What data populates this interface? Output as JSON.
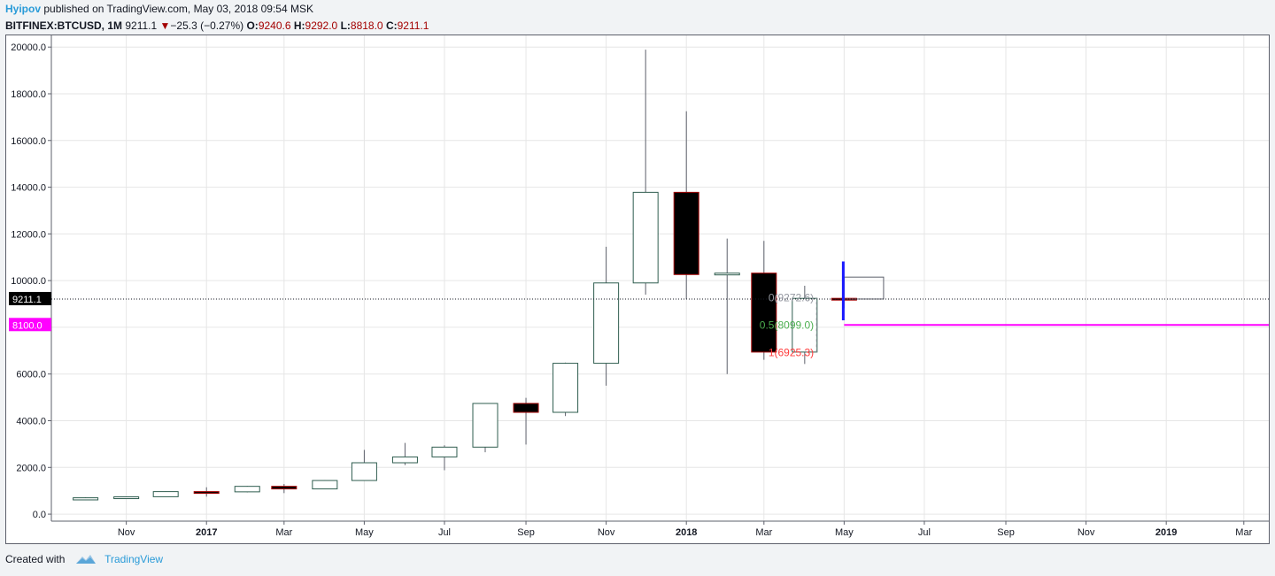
{
  "header": {
    "author": "Hyipov",
    "published_text": "published on TradingView.com, May 03, 2018 09:54 MSK",
    "symbol": "BITFINEX:BTCUSD, 1M",
    "last_price": "9211.1",
    "change": "−25.3 (−0.27%)",
    "open_label": "O:",
    "open": "9240.6",
    "high_label": "H:",
    "high": "9292.0",
    "low_label": "L:",
    "low": "8818.0",
    "close_label": "C:",
    "close": "9211.1"
  },
  "footer": {
    "created_with": "Created with",
    "brand": "TradingView"
  },
  "colors": {
    "up_border": "#2f5d4f",
    "down_body": "#000000",
    "down_border": "#a30000",
    "wick": "#5d606b",
    "grid": "#e6e6e6",
    "magenta": "#ff00ff",
    "fib0": "#9598a1",
    "fib05": "#4caf50",
    "fib1": "#ff3b3b",
    "marker": "#1a1aff"
  },
  "chart_data": {
    "type": "candlestick",
    "timeframe": "1M",
    "y_ticks": [
      "0.0",
      "2000.0",
      "4000.0",
      "6000.0",
      "8000.0",
      "10000.0",
      "12000.0",
      "14000.0",
      "16000.0",
      "18000.0",
      "20000.0"
    ],
    "y_tick_values": [
      0,
      2000,
      4000,
      6000,
      8000,
      10000,
      12000,
      14000,
      16000,
      18000,
      20000
    ],
    "ylim": [
      -300,
      20500
    ],
    "x_range": [
      "2016-09-05",
      "2019-03-20"
    ],
    "x_ticks": [
      {
        "label": "Nov",
        "date": "2016-11-01",
        "bold": false
      },
      {
        "label": "2017",
        "date": "2017-01-01",
        "bold": true
      },
      {
        "label": "Mar",
        "date": "2017-03-01",
        "bold": false
      },
      {
        "label": "May",
        "date": "2017-05-01",
        "bold": false
      },
      {
        "label": "Jul",
        "date": "2017-07-01",
        "bold": false
      },
      {
        "label": "Sep",
        "date": "2017-09-01",
        "bold": false
      },
      {
        "label": "Nov",
        "date": "2017-11-01",
        "bold": false
      },
      {
        "label": "2018",
        "date": "2018-01-01",
        "bold": true
      },
      {
        "label": "Mar",
        "date": "2018-03-01",
        "bold": false
      },
      {
        "label": "May",
        "date": "2018-05-01",
        "bold": false
      },
      {
        "label": "Jul",
        "date": "2018-07-01",
        "bold": false
      },
      {
        "label": "Sep",
        "date": "2018-09-01",
        "bold": false
      },
      {
        "label": "Nov",
        "date": "2018-11-01",
        "bold": false
      },
      {
        "label": "2019",
        "date": "2019-01-01",
        "bold": true
      },
      {
        "label": "Mar",
        "date": "2019-03-01",
        "bold": false
      }
    ],
    "candles": [
      {
        "date": "2016-10-01",
        "open": 610,
        "high": 720,
        "low": 600,
        "close": 700
      },
      {
        "date": "2016-11-01",
        "open": 700,
        "high": 760,
        "low": 690,
        "close": 740
      },
      {
        "date": "2016-12-01",
        "open": 745,
        "high": 975,
        "low": 740,
        "close": 965
      },
      {
        "date": "2017-01-01",
        "open": 965,
        "high": 1150,
        "low": 750,
        "close": 955
      },
      {
        "date": "2017-02-01",
        "open": 955,
        "high": 1210,
        "low": 930,
        "close": 1190
      },
      {
        "date": "2017-03-01",
        "open": 1190,
        "high": 1290,
        "low": 900,
        "close": 1080
      },
      {
        "date": "2017-04-01",
        "open": 1080,
        "high": 1450,
        "low": 1070,
        "close": 1440
      },
      {
        "date": "2017-05-01",
        "open": 1440,
        "high": 2750,
        "low": 1440,
        "close": 2200
      },
      {
        "date": "2017-06-01",
        "open": 2200,
        "high": 3050,
        "low": 2100,
        "close": 2450
      },
      {
        "date": "2017-07-01",
        "open": 2450,
        "high": 2950,
        "low": 1880,
        "close": 2870
      },
      {
        "date": "2017-08-01",
        "open": 2870,
        "high": 4750,
        "low": 2650,
        "close": 4740
      },
      {
        "date": "2017-09-01",
        "open": 4740,
        "high": 4980,
        "low": 2980,
        "close": 4360
      },
      {
        "date": "2017-10-01",
        "open": 4360,
        "high": 6490,
        "low": 4200,
        "close": 6460
      },
      {
        "date": "2017-11-01",
        "open": 6460,
        "high": 11450,
        "low": 5500,
        "close": 9900
      },
      {
        "date": "2017-12-01",
        "open": 9900,
        "high": 19890,
        "low": 9400,
        "close": 13780
      },
      {
        "date": "2018-01-01",
        "open": 13780,
        "high": 17250,
        "low": 9200,
        "close": 10260
      },
      {
        "date": "2018-02-01",
        "open": 10260,
        "high": 11800,
        "low": 6000,
        "close": 10320
      },
      {
        "date": "2018-03-01",
        "open": 10320,
        "high": 11700,
        "low": 6610,
        "close": 6940
      },
      {
        "date": "2018-04-01",
        "open": 6940,
        "high": 9780,
        "low": 6430,
        "close": 9240
      },
      {
        "date": "2018-05-01",
        "open": 9240.6,
        "high": 9292.0,
        "low": 8818.0,
        "close": 9211.1
      }
    ],
    "price_line": {
      "value": 9211.1,
      "label": "9211.1"
    },
    "horizontal_level": {
      "value": 8100,
      "label": "8100.0",
      "from": "2018-05-01"
    },
    "fib_levels": [
      {
        "label": "0(9272.6)",
        "value": 9272.6
      },
      {
        "label": "0.5(8099.0)",
        "value": 8099.0
      },
      {
        "label": "1(6925.3)",
        "value": 6925.3
      }
    ],
    "fib_dashed_line": {
      "date": "2018-04-10",
      "from": 6925.3,
      "to": 9272.6
    },
    "marker_line": {
      "date": "2018-05-01",
      "from": 8300,
      "to": 10820
    },
    "projection_box": {
      "from": "2018-05-01",
      "to": "2018-05-31",
      "top": 10150,
      "bottom": 9211.1
    }
  }
}
